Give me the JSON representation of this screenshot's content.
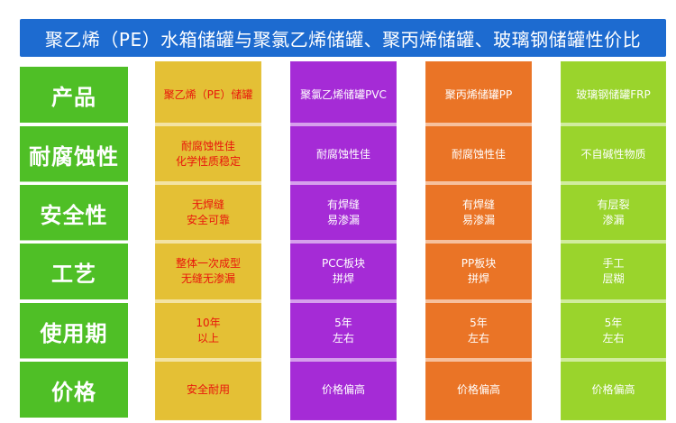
{
  "title": "聚乙烯（PE）水箱储罐与聚氯乙烯储罐、聚丙烯储罐、玻璃钢储罐性价比",
  "colors": {
    "title_bg": "#1d6bd0",
    "label_bg": "#4fbf26",
    "pe_bg": "#e4c035",
    "pvc_bg": "#a52bd6",
    "pp_bg": "#ea7426",
    "frp_bg": "#9ad42c",
    "pe_text": "#e8160c",
    "other_text": "#ffffff"
  },
  "row_labels": [
    "产品",
    "耐腐蚀性",
    "安全性",
    "工艺",
    "使用期",
    "价格"
  ],
  "columns": [
    {
      "key": "pe",
      "cells": [
        [
          "聚乙烯（PE）储罐"
        ],
        [
          "耐腐蚀性佳",
          "化学性质稳定"
        ],
        [
          "无焊缝",
          "安全可靠"
        ],
        [
          "整体一次成型",
          "无缝无渗漏"
        ],
        [
          "10年",
          "以上"
        ],
        [
          "安全耐用"
        ]
      ]
    },
    {
      "key": "pvc",
      "cells": [
        [
          "聚氯乙烯储罐PVC"
        ],
        [
          "耐腐蚀性佳"
        ],
        [
          "有焊缝",
          "易渗漏"
        ],
        [
          "PCC板块",
          "拼焊"
        ],
        [
          "5年",
          "左右"
        ],
        [
          "价格偏高"
        ]
      ]
    },
    {
      "key": "pp",
      "cells": [
        [
          "聚丙烯储罐PP"
        ],
        [
          "耐腐蚀性佳"
        ],
        [
          "有焊缝",
          "易渗漏"
        ],
        [
          "PP板块",
          "拼焊"
        ],
        [
          "5年",
          "左右"
        ],
        [
          "价格偏高"
        ]
      ]
    },
    {
      "key": "frp",
      "cells": [
        [
          "玻璃钢储罐FRP"
        ],
        [
          "不自碱性物质"
        ],
        [
          "有层裂",
          "渗漏"
        ],
        [
          "手工",
          "层糊"
        ],
        [
          "5年",
          "左右"
        ],
        [
          "价格偏高"
        ]
      ]
    }
  ]
}
